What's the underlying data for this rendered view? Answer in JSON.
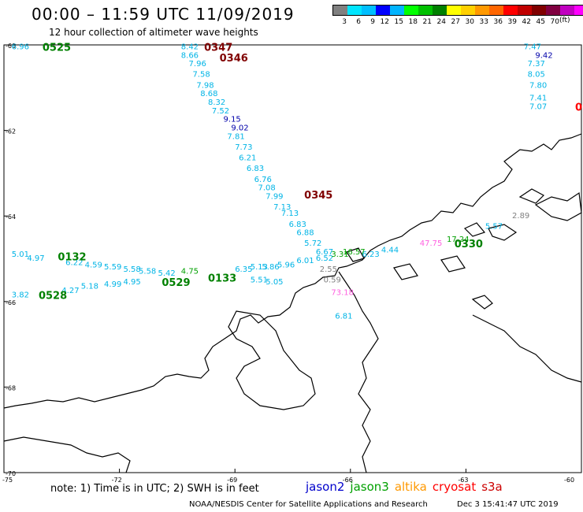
{
  "header": {
    "title": "00:00 – 11:59 UTC 11/09/2019",
    "subtitle": "12 hour collection of altimeter wave heights"
  },
  "colorbar": {
    "colors": [
      "#808080",
      "#00e5ff",
      "#00bfff",
      "#0000ff",
      "#00b4ff",
      "#00ff00",
      "#00c000",
      "#008000",
      "#ffff00",
      "#ffd000",
      "#ff9900",
      "#ff6600",
      "#ff0000",
      "#c00000",
      "#800000",
      "#800040",
      "#c000c0",
      "#ff00ff"
    ],
    "ticks": [
      "3",
      "6",
      "9",
      "12",
      "15",
      "18",
      "21",
      "24",
      "27",
      "30",
      "33",
      "36",
      "39",
      "42",
      "45",
      "70"
    ],
    "unit": "(ft)"
  },
  "axes": {
    "y_ticks": [
      "-60",
      "-62",
      "-64",
      "-66",
      "-68",
      "-70"
    ],
    "x_ticks": [
      "-75",
      "-72",
      "-69",
      "-66",
      "-63",
      "-60"
    ]
  },
  "tracks": [
    {
      "satellite": "jason2",
      "color": "#00b4e6",
      "points": [
        {
          "lon": -74.8,
          "lat": -60.1,
          "v": "6.96"
        },
        {
          "lon": -70.4,
          "lat": -60.1,
          "v": "8.42"
        },
        {
          "lon": -70.4,
          "lat": -60.3,
          "v": "8.66"
        },
        {
          "lon": -70.2,
          "lat": -60.5,
          "v": "7.96"
        },
        {
          "lon": -70.1,
          "lat": -60.75,
          "v": "7.58"
        },
        {
          "lon": -70.0,
          "lat": -61.0,
          "v": "7.98"
        },
        {
          "lon": -69.9,
          "lat": -61.2,
          "v": "8.68"
        },
        {
          "lon": -69.7,
          "lat": -61.4,
          "v": "8.32"
        },
        {
          "lon": -69.6,
          "lat": -61.6,
          "v": "7.52"
        },
        {
          "lon": -69.2,
          "lat": -62.2,
          "v": "7.81"
        },
        {
          "lon": -69.0,
          "lat": -62.45,
          "v": "7.73"
        },
        {
          "lon": -68.9,
          "lat": -62.7,
          "v": "6.21"
        },
        {
          "lon": -68.7,
          "lat": -62.95,
          "v": "6.83"
        },
        {
          "lon": -68.5,
          "lat": -63.2,
          "v": "6.76"
        },
        {
          "lon": -68.4,
          "lat": -63.4,
          "v": "7.08"
        },
        {
          "lon": -68.2,
          "lat": -63.6,
          "v": "7.99"
        },
        {
          "lon": -68.0,
          "lat": -63.85,
          "v": "7.13"
        },
        {
          "lon": -67.8,
          "lat": -64.0,
          "v": "7.13"
        },
        {
          "lon": -67.6,
          "lat": -64.25,
          "v": "6.83"
        },
        {
          "lon": -67.4,
          "lat": -64.45,
          "v": "6.88"
        },
        {
          "lon": -67.2,
          "lat": -64.7,
          "v": "5.72"
        },
        {
          "lon": -66.9,
          "lat": -64.9,
          "v": "6.67"
        },
        {
          "lon": -66.9,
          "lat": -65.05,
          "v": "6.52"
        },
        {
          "lon": -67.4,
          "lat": -65.1,
          "v": "6.01"
        },
        {
          "lon": -67.9,
          "lat": -65.2,
          "v": "5.96"
        },
        {
          "lon": -68.3,
          "lat": -65.25,
          "v": "5.86"
        },
        {
          "lon": -68.6,
          "lat": -65.25,
          "v": "5.13"
        },
        {
          "lon": -69.0,
          "lat": -65.3,
          "v": "6.35"
        },
        {
          "lon": -68.6,
          "lat": -65.55,
          "v": "5.51"
        },
        {
          "lon": -68.2,
          "lat": -65.6,
          "v": "5.05"
        },
        {
          "lon": -74.8,
          "lat": -64.95,
          "v": "5.01"
        },
        {
          "lon": -74.4,
          "lat": -65.05,
          "v": "4.97"
        },
        {
          "lon": -73.4,
          "lat": -65.15,
          "v": "6.22"
        },
        {
          "lon": -72.9,
          "lat": -65.2,
          "v": "4.59"
        },
        {
          "lon": -72.4,
          "lat": -65.25,
          "v": "5.59"
        },
        {
          "lon": -71.9,
          "lat": -65.3,
          "v": "5.58"
        },
        {
          "lon": -71.5,
          "lat": -65.35,
          "v": "5.58"
        },
        {
          "lon": -71.0,
          "lat": -65.4,
          "v": "5.42"
        },
        {
          "lon": -74.8,
          "lat": -65.9,
          "v": "3.82"
        },
        {
          "lon": -73.5,
          "lat": -65.8,
          "v": "4.27"
        },
        {
          "lon": -73.0,
          "lat": -65.7,
          "v": "5.18"
        },
        {
          "lon": -72.4,
          "lat": -65.65,
          "v": "4.99"
        },
        {
          "lon": -71.9,
          "lat": -65.6,
          "v": "4.95"
        },
        {
          "lon": -65.7,
          "lat": -64.95,
          "v": "6.23"
        },
        {
          "lon": -65.2,
          "lat": -64.85,
          "v": "4.44"
        },
        {
          "lon": -62.5,
          "lat": -64.3,
          "v": "5.57"
        },
        {
          "lon": -61.5,
          "lat": -60.1,
          "v": "7.47"
        },
        {
          "lon": -61.4,
          "lat": -60.5,
          "v": "7.37"
        },
        {
          "lon": -61.4,
          "lat": -60.75,
          "v": "8.05"
        },
        {
          "lon": -61.35,
          "lat": -61.0,
          "v": "7.80"
        },
        {
          "lon": -61.35,
          "lat": -61.3,
          "v": "7.41"
        },
        {
          "lon": -61.35,
          "lat": -61.5,
          "v": "7.07"
        },
        {
          "lon": -66.4,
          "lat": -66.4,
          "v": "6.81"
        }
      ]
    },
    {
      "satellite": "jason2 (high)",
      "color": "#0000aa",
      "points": [
        {
          "lon": -69.3,
          "lat": -61.8,
          "v": "9.15"
        },
        {
          "lon": -69.1,
          "lat": -62.0,
          "v": "9.02"
        },
        {
          "lon": -61.2,
          "lat": -60.3,
          "v": "9.42"
        }
      ]
    },
    {
      "satellite": "jason3",
      "color": "#00a000",
      "points": [
        {
          "lon": -66.5,
          "lat": -64.95,
          "v": "3.31"
        },
        {
          "lon": -66.2,
          "lat": -64.9,
          "v": "16.57"
        },
        {
          "lon": -63.5,
          "lat": -64.6,
          "v": "17.24"
        },
        {
          "lon": -70.4,
          "lat": -65.35,
          "v": "4.75"
        }
      ]
    },
    {
      "satellite": "altika",
      "color": "#808080",
      "points": [
        {
          "lon": -66.8,
          "lat": -65.3,
          "v": "2.55"
        },
        {
          "lon": -66.7,
          "lat": -65.55,
          "v": "0.59"
        },
        {
          "lon": -61.8,
          "lat": -64.05,
          "v": "2.89"
        }
      ]
    },
    {
      "satellite": "s3a",
      "color": "#ff60e0",
      "points": [
        {
          "lon": -64.2,
          "lat": -64.7,
          "v": "47.75"
        },
        {
          "lon": -66.5,
          "lat": -65.85,
          "v": "73.18"
        }
      ]
    }
  ],
  "time_labels": [
    {
      "lon": -74.0,
      "lat": -60.1,
      "t": "0525",
      "color": "#008000"
    },
    {
      "lon": -69.8,
      "lat": -60.1,
      "t": "0347",
      "color": "#800000"
    },
    {
      "lon": -69.4,
      "lat": -60.35,
      "t": "0346",
      "color": "#800000"
    },
    {
      "lon": -67.2,
      "lat": -63.55,
      "t": "0345",
      "color": "#800000"
    },
    {
      "lon": -73.6,
      "lat": -65.0,
      "t": "0132",
      "color": "#008000"
    },
    {
      "lon": -70.9,
      "lat": -65.6,
      "t": "0529",
      "color": "#008000"
    },
    {
      "lon": -69.7,
      "lat": -65.5,
      "t": "0133",
      "color": "#008000"
    },
    {
      "lon": -74.1,
      "lat": -65.9,
      "t": "0528",
      "color": "#008000"
    },
    {
      "lon": -63.3,
      "lat": -64.7,
      "t": "0330",
      "color": "#008000"
    },
    {
      "lon": -60.1,
      "lat": -61.5,
      "t": "0",
      "color": "#ff0000"
    }
  ],
  "footer": {
    "note": "note:  1) Time is in UTC;  2) SWH is in feet",
    "satellites": [
      {
        "name": "jason2",
        "color": "#0000cc"
      },
      {
        "name": "jason3",
        "color": "#00a000"
      },
      {
        "name": "altika",
        "color": "#ff9900"
      },
      {
        "name": "cryosat",
        "color": "#ff0000"
      },
      {
        "name": "s3a",
        "color": "#cc0000"
      }
    ],
    "credit": "NOAA/NESDIS Center for Satellite Applications and Research",
    "timestamp": "Dec  3 15:41:47 UTC 2019"
  }
}
